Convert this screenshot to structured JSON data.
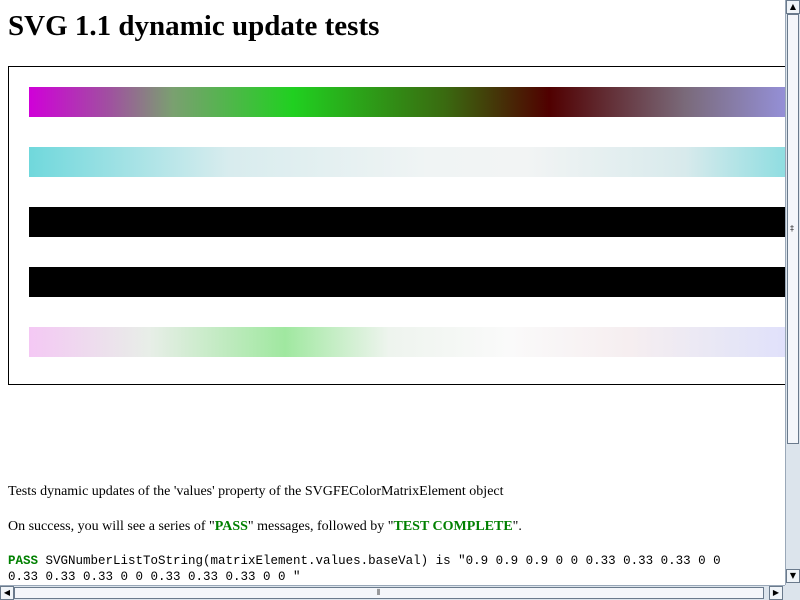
{
  "page": {
    "title": "SVG 1.1 dynamic update tests",
    "description": "Tests dynamic updates of the 'values' property of the SVGFEColorMatrixElement object",
    "success_prefix": "On success, you will see a series of \"",
    "pass_word": "PASS",
    "success_middle": "\" messages, followed by \"",
    "complete_word": "TEST COMPLETE",
    "success_suffix": "\"."
  },
  "console": {
    "status": "PASS",
    "line1": " SVGNumberListToString(matrixElement.values.baseVal) is \"0.9 0.9 0.9 0 0 0.33 0.33 0.33 0 0",
    "line2": "0.33 0.33 0.33 0 0 0.33 0.33 0.33 0 0 \""
  },
  "scrollbars": {
    "up_icon": "▲",
    "down_icon": "▼",
    "left_icon": "◀",
    "right_icon": "▶"
  },
  "colors": {
    "pass": "#008000",
    "scrollbar_bg": "#dce4ec"
  }
}
